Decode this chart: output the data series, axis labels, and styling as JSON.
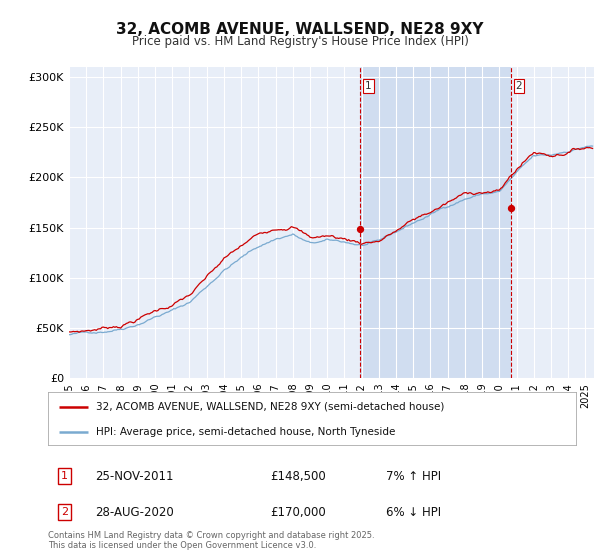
{
  "title": "32, ACOMB AVENUE, WALLSEND, NE28 9XY",
  "subtitle": "Price paid vs. HM Land Registry's House Price Index (HPI)",
  "ylabel_ticks": [
    "£0",
    "£50K",
    "£100K",
    "£150K",
    "£200K",
    "£250K",
    "£300K"
  ],
  "ytick_values": [
    0,
    50000,
    100000,
    150000,
    200000,
    250000,
    300000
  ],
  "ylim": [
    0,
    310000
  ],
  "xlim_start": 1995.0,
  "xlim_end": 2025.5,
  "background_color": "#e8eef8",
  "shade_color": "#d0ddf0",
  "red_line_color": "#cc0000",
  "blue_line_color": "#7aaad0",
  "grid_color": "#ffffff",
  "ann1_x": 2011.9,
  "ann2_x": 2020.65,
  "ann1_y": 148500,
  "ann2_y": 170000,
  "annotation1": {
    "label": "1",
    "price": "£148,500",
    "date": "25-NOV-2011",
    "pct": "7% ↑ HPI"
  },
  "annotation2": {
    "label": "2",
    "price": "£170,000",
    "date": "28-AUG-2020",
    "pct": "6% ↓ HPI"
  },
  "legend_line1": "32, ACOMB AVENUE, WALLSEND, NE28 9XY (semi-detached house)",
  "legend_line2": "HPI: Average price, semi-detached house, North Tyneside",
  "footer": "Contains HM Land Registry data © Crown copyright and database right 2025.\nThis data is licensed under the Open Government Licence v3.0."
}
